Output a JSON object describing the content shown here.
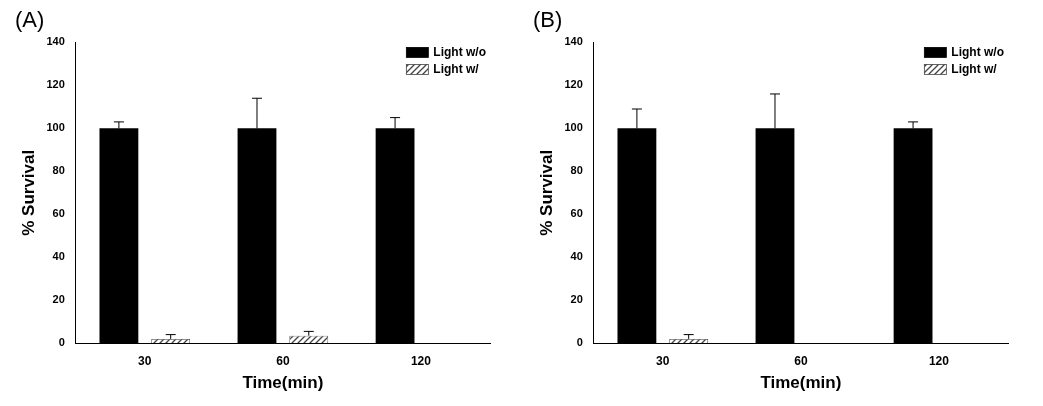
{
  "chart_data": [
    {
      "type": "bar",
      "title": "(A)",
      "categories": [
        30,
        60,
        120
      ],
      "xlabel": "Time(min)",
      "ylabel": "% Survival",
      "ylim": [
        0,
        140
      ],
      "yticks": [
        0,
        20,
        40,
        60,
        80,
        100,
        120,
        140
      ],
      "grid": false,
      "legend": "upper right",
      "series": [
        {
          "name": "Light w/o",
          "color": "#000000",
          "values": [
            100,
            100,
            100
          ],
          "errors": [
            3,
            14,
            5
          ]
        },
        {
          "name": "Light w/",
          "color": "#444444",
          "values": [
            2,
            3.5,
            0
          ],
          "errors": [
            2,
            2,
            0
          ]
        }
      ]
    },
    {
      "type": "bar",
      "title": "(B)",
      "categories": [
        30,
        60,
        120
      ],
      "xlabel": "Time(min)",
      "ylabel": "% Survival",
      "ylim": [
        0,
        140
      ],
      "yticks": [
        0,
        20,
        40,
        60,
        80,
        100,
        120,
        140
      ],
      "grid": false,
      "legend": "upper right",
      "series": [
        {
          "name": "Light w/o",
          "color": "#000000",
          "values": [
            100,
            100,
            100
          ],
          "errors": [
            9,
            16,
            3
          ]
        },
        {
          "name": "Light w/",
          "color": "#444444",
          "values": [
            2,
            0,
            0
          ],
          "errors": [
            2,
            0,
            0
          ]
        }
      ]
    }
  ]
}
